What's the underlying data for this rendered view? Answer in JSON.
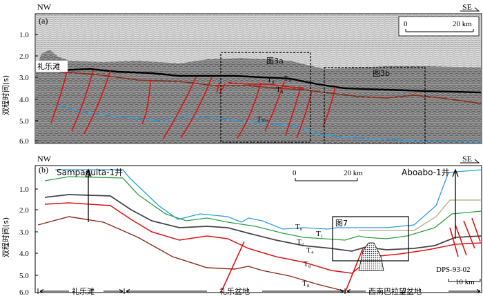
{
  "panel_a": {
    "label": "(a)",
    "dir_left": "NW",
    "dir_right": "SE",
    "y_axis_label": "双程时间(s)",
    "y_ticks": [
      "1.0",
      "2.0",
      "3.0",
      "4.0",
      "5.0",
      "6.0"
    ],
    "scale_zero": "0",
    "scale_end": "20 km",
    "location_label": "礼乐滩",
    "box_labels": [
      "图3a",
      "图3b"
    ],
    "horizons": [
      "T₄",
      "T₈",
      "T₈",
      "Tₘ₇"
    ]
  },
  "panel_b": {
    "label": "(b)",
    "dir_left": "NW",
    "dir_right": "SE",
    "y_axis_label": "双程时间(s)",
    "y_ticks": [
      "1.0",
      "2.0",
      "3.0",
      "4.0",
      "5.0",
      "6.0"
    ],
    "well_left": "Sampaguita-1井",
    "well_right": "Aboabo-1井",
    "scale_zero": "0",
    "scale_end": "20 km",
    "box_label": "图7",
    "horizons": [
      "T₀",
      "T₁",
      "T₂",
      "T₄",
      "T₈",
      "T₈"
    ],
    "profile_id": "DPS-93-02",
    "scale_small": "10 km",
    "regions": [
      "礼乐滩",
      "礼乐盆地",
      "西南巴拉望盆地"
    ]
  }
}
